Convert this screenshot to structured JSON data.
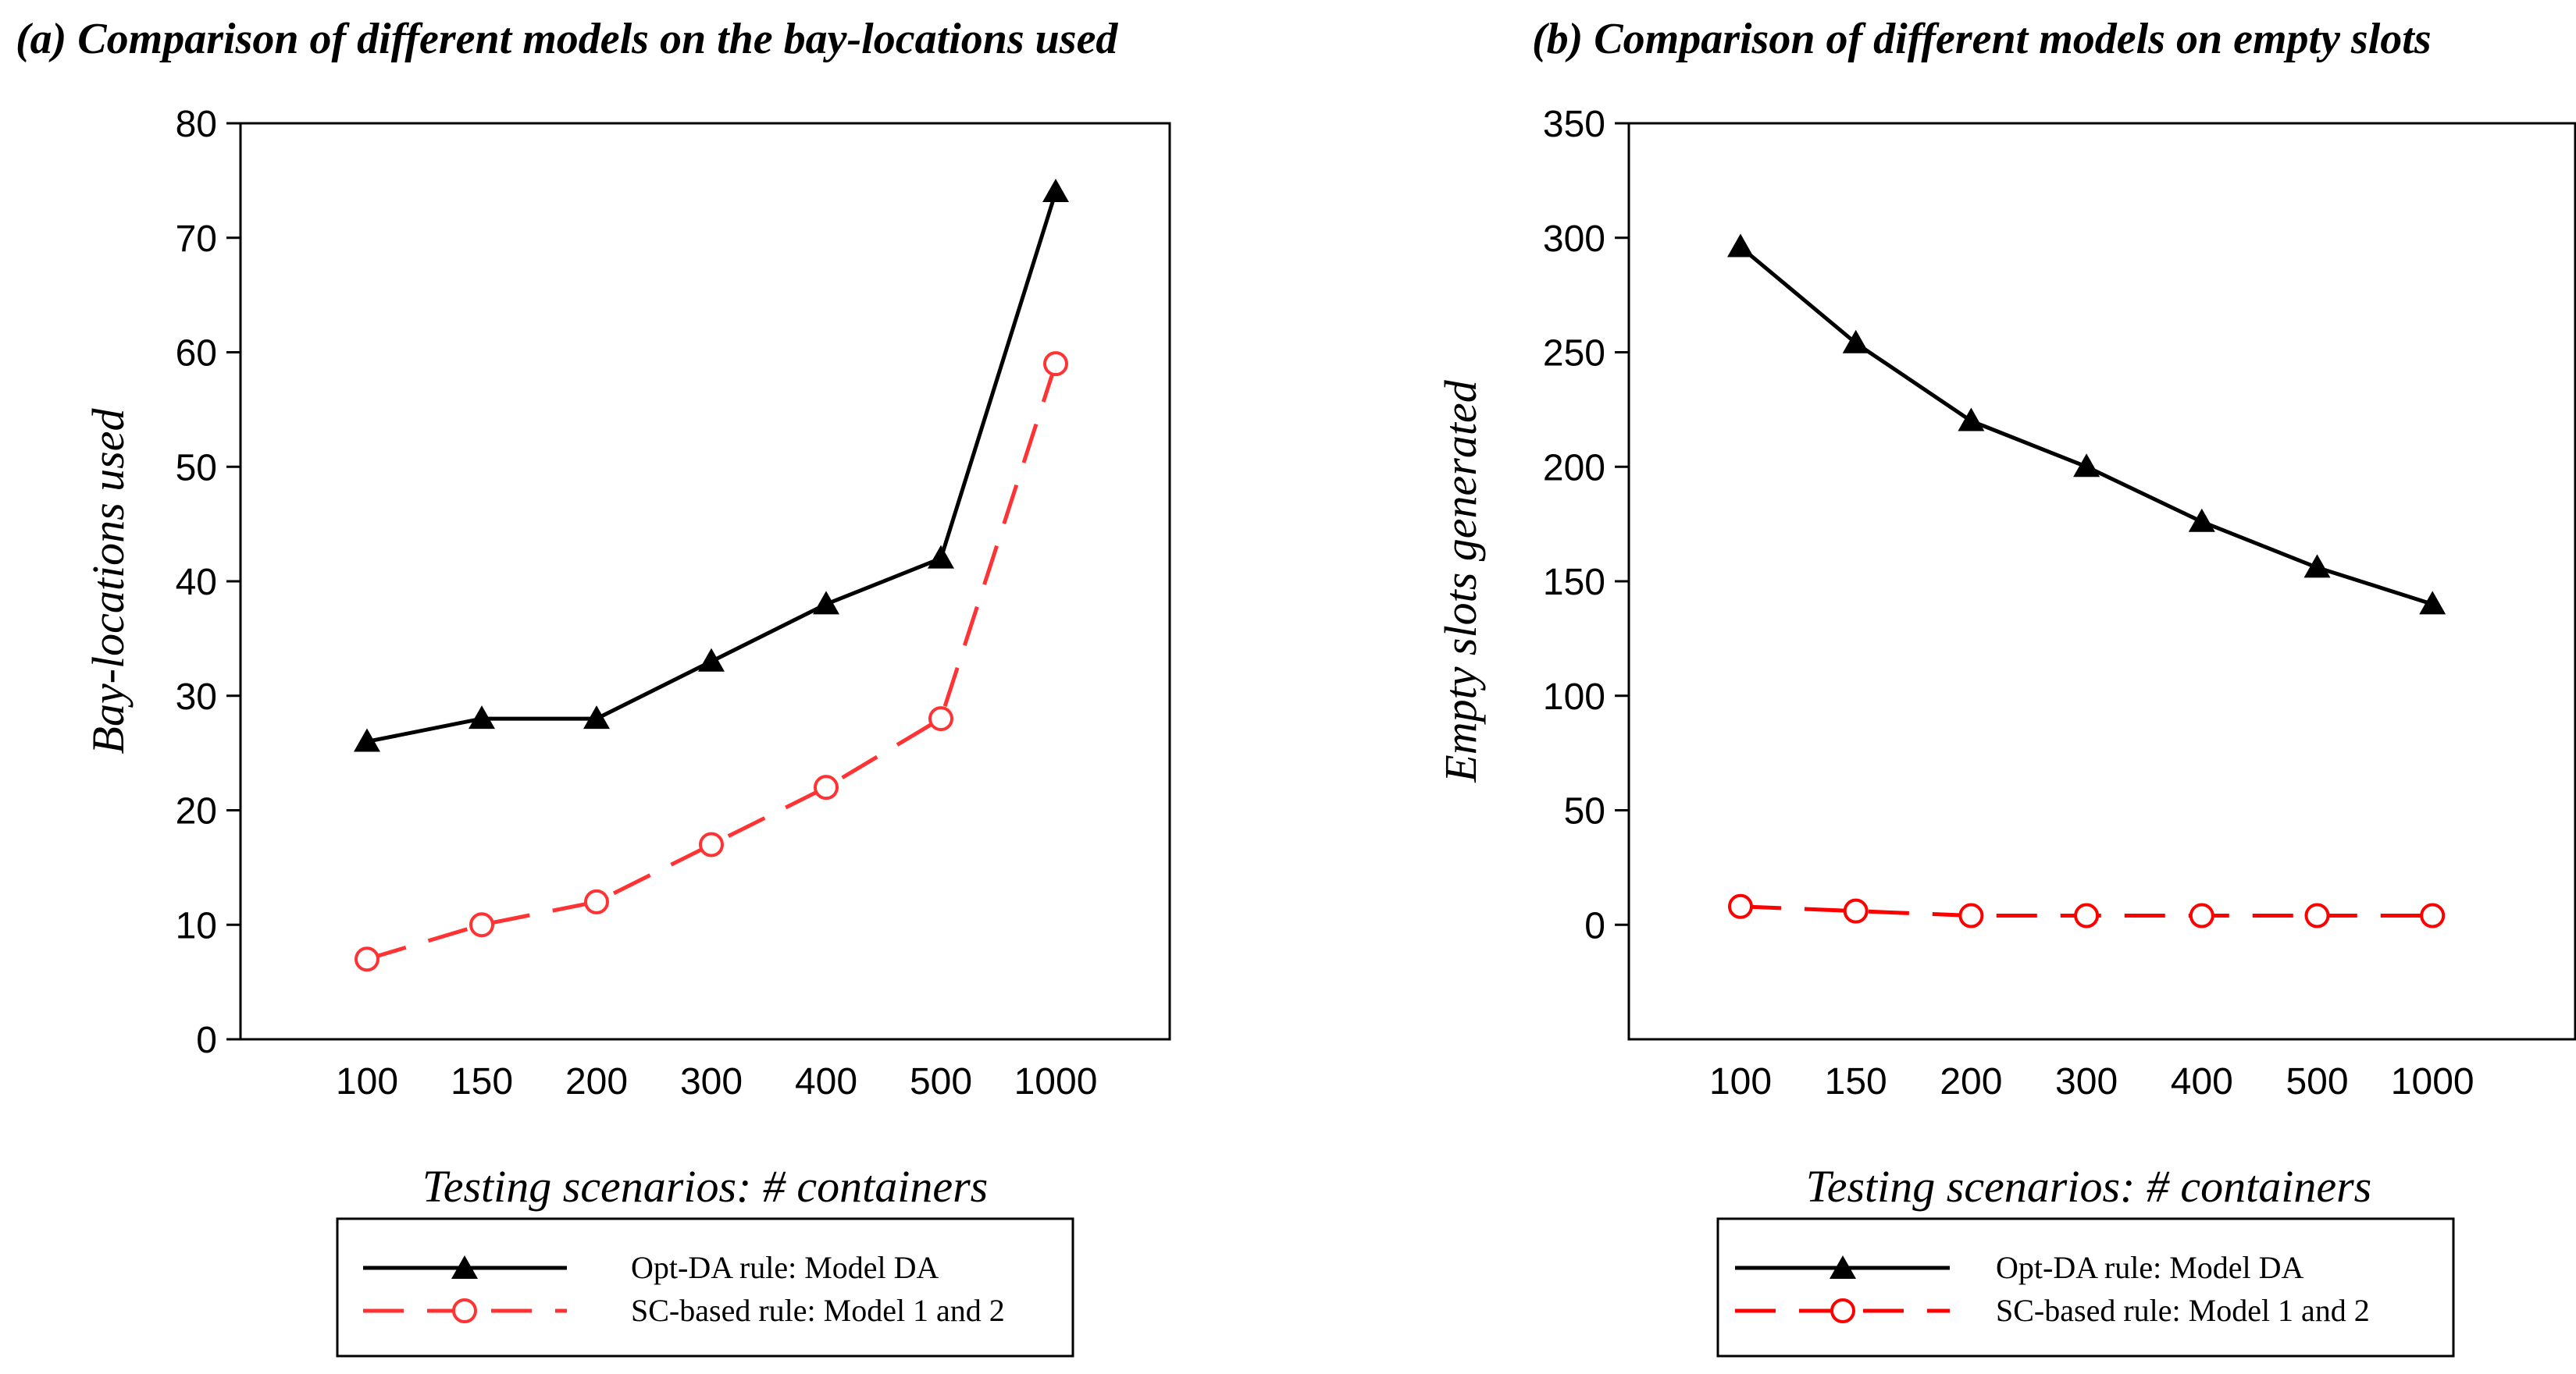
{
  "chart_data": [
    {
      "type": "line",
      "title": "(a) Comparison of different models on the bay-locations used",
      "xlabel": "Testing scenarios: # containers",
      "ylabel": "Bay-locations used",
      "categories": [
        "100",
        "150",
        "200",
        "300",
        "400",
        "500",
        "1000"
      ],
      "ylim": [
        0,
        80
      ],
      "yticks": [
        0,
        10,
        20,
        30,
        40,
        50,
        60,
        70,
        80
      ],
      "grid": false,
      "legend_position": "bottom",
      "series": [
        {
          "name": "Opt-DA rule: Model DA",
          "color": "#000000",
          "style": "solid",
          "marker": "triangle",
          "values": [
            26,
            28,
            28,
            33,
            38,
            42,
            74
          ]
        },
        {
          "name": "SC-based rule: Model 1 and 2",
          "color": "#ff3333",
          "style": "dashed",
          "marker": "circle",
          "values": [
            7,
            10,
            12,
            17,
            22,
            28,
            59
          ]
        }
      ]
    },
    {
      "type": "line",
      "title": "(b) Comparison of different models on empty slots",
      "xlabel": "Testing scenarios: # containers",
      "ylabel": "Empty slots generated",
      "categories": [
        "100",
        "150",
        "200",
        "300",
        "400",
        "500",
        "1000"
      ],
      "ylim": [
        -50,
        350
      ],
      "yticks": [
        0,
        50,
        100,
        150,
        200,
        250,
        300,
        350
      ],
      "grid": false,
      "legend_position": "bottom",
      "series": [
        {
          "name": "Opt-DA rule: Model DA",
          "color": "#000000",
          "style": "solid",
          "marker": "triangle",
          "values": [
            296,
            254,
            220,
            200,
            176,
            156,
            140
          ]
        },
        {
          "name": "SC-based rule: Model 1 and 2",
          "color": "#ff0000",
          "style": "dashed",
          "marker": "circle",
          "values": [
            8,
            6,
            4,
            4,
            4,
            4,
            4
          ]
        }
      ]
    }
  ]
}
